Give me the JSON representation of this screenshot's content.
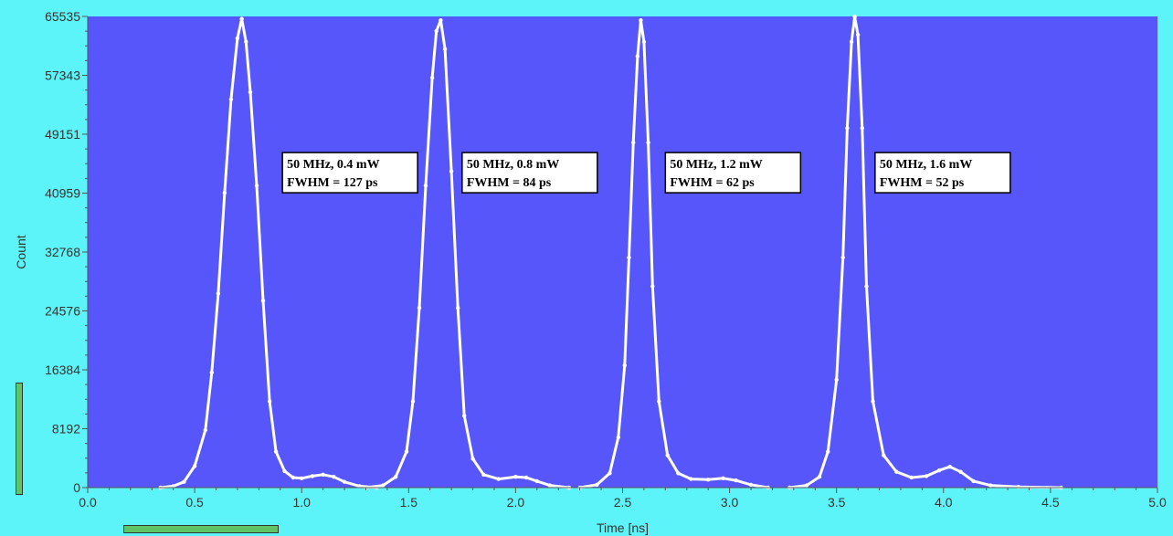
{
  "colors": {
    "window_bg": "#5cf4f8",
    "plot_bg": "#5656fb",
    "trace": "#ffffff",
    "annotation_bg": "#ffffff",
    "scrollbar": "#5ec466",
    "axis_text": "#333333"
  },
  "chart_data": {
    "type": "scatter",
    "title": "",
    "xlabel": "Time [ns]",
    "ylabel": "Count",
    "xlim": [
      0.0,
      5.0
    ],
    "ylim": [
      0,
      65535
    ],
    "x_ticks": [
      "0.0",
      "0.5",
      "1.0",
      "1.5",
      "2.0",
      "2.5",
      "3.0",
      "3.5",
      "4.0",
      "4.5",
      "5.0"
    ],
    "y_ticks": [
      "0",
      "8192",
      "16384",
      "24576",
      "32768",
      "40959",
      "49151",
      "57343",
      "65535"
    ],
    "grid": false,
    "series": [
      {
        "x": [
          0.34,
          0.4,
          0.45,
          0.5,
          0.55,
          0.58,
          0.61,
          0.64,
          0.67,
          0.7,
          0.72,
          0.74,
          0.76,
          0.79,
          0.82,
          0.85,
          0.88,
          0.92,
          0.96,
          1.0,
          1.05,
          1.1,
          1.15,
          1.2,
          1.27,
          1.35
        ],
        "y": [
          0,
          200,
          800,
          3000,
          8000,
          16000,
          27000,
          41000,
          54000,
          62500,
          65200,
          62000,
          55000,
          42000,
          26000,
          12000,
          5000,
          2300,
          1400,
          1300,
          1600,
          1800,
          1500,
          800,
          200,
          0
        ]
      },
      {
        "x": [
          1.3,
          1.38,
          1.44,
          1.49,
          1.52,
          1.55,
          1.58,
          1.61,
          1.63,
          1.65,
          1.67,
          1.7,
          1.73,
          1.76,
          1.8,
          1.85,
          1.92,
          2.0,
          2.05,
          2.1,
          2.16,
          2.25
        ],
        "y": [
          0,
          300,
          1500,
          5000,
          12000,
          25000,
          42000,
          57000,
          63500,
          65000,
          61000,
          44000,
          25000,
          10000,
          4000,
          1800,
          1200,
          1500,
          1400,
          900,
          300,
          0
        ]
      },
      {
        "x": [
          2.3,
          2.38,
          2.44,
          2.48,
          2.51,
          2.53,
          2.55,
          2.57,
          2.585,
          2.6,
          2.62,
          2.64,
          2.67,
          2.71,
          2.76,
          2.82,
          2.9,
          2.97,
          3.03,
          3.1,
          3.18
        ],
        "y": [
          0,
          400,
          2000,
          7000,
          17000,
          32000,
          48000,
          60000,
          65000,
          62000,
          48000,
          28000,
          12000,
          4500,
          2000,
          1200,
          1100,
          1300,
          1000,
          400,
          0
        ]
      },
      {
        "x": [
          3.28,
          3.36,
          3.42,
          3.46,
          3.5,
          3.53,
          3.55,
          3.57,
          3.585,
          3.6,
          3.62,
          3.64,
          3.67,
          3.72,
          3.78,
          3.85,
          3.92,
          3.98,
          4.03,
          4.08,
          4.14,
          4.22,
          4.35,
          4.55
        ],
        "y": [
          0,
          300,
          1500,
          5000,
          15000,
          32000,
          50000,
          62000,
          65500,
          63000,
          50000,
          28000,
          12000,
          4500,
          2200,
          1400,
          1600,
          2400,
          2900,
          2200,
          900,
          300,
          100,
          0
        ]
      }
    ],
    "annotations": [
      {
        "line1": "50 MHz, 0.4 mW",
        "line2": "FWHM = 127 ps",
        "x": 0.91,
        "y": 46600
      },
      {
        "line1": "50 MHz, 0.8 mW",
        "line2": "FWHM = 84 ps",
        "x": 1.75,
        "y": 46600
      },
      {
        "line1": "50 MHz, 1.2 mW",
        "line2": "FWHM = 62 ps",
        "x": 2.7,
        "y": 46600
      },
      {
        "line1": "50 MHz, 1.6 mW",
        "line2": "FWHM = 52 ps",
        "x": 3.68,
        "y": 46600
      }
    ]
  }
}
